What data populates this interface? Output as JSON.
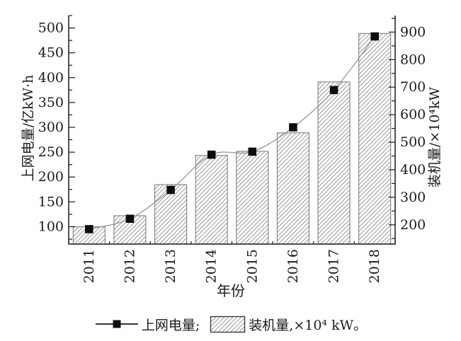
{
  "chart_data": {
    "type": "combo",
    "categories": [
      "2011",
      "2012",
      "2013",
      "2014",
      "2015",
      "2016",
      "2017",
      "2018"
    ],
    "series": [
      {
        "name": "上网电量",
        "type": "line",
        "axis": "left",
        "marker": "filled-square",
        "values": [
          95,
          116,
          174,
          245,
          251,
          300,
          375,
          483
        ]
      },
      {
        "name": "装机量",
        "type": "bar",
        "axis": "right",
        "fill": "diagonal-hatch",
        "values": [
          193,
          233,
          346,
          452,
          467,
          534,
          719,
          895
        ]
      }
    ],
    "x_axis": {
      "title": "年份",
      "tick_labels": [
        "2011",
        "2012",
        "2013",
        "2014",
        "2015",
        "2016",
        "2017",
        "2018"
      ]
    },
    "left_axis": {
      "title": "上网电量/亿kW·h",
      "min": 65,
      "max": 525,
      "major_ticks": [
        100,
        150,
        200,
        250,
        300,
        350,
        400,
        450,
        500
      ],
      "minor_step": 25
    },
    "right_axis": {
      "title": "装机量/×10⁴kW",
      "min": 130,
      "max": 960,
      "major_ticks": [
        200,
        300,
        400,
        500,
        600,
        700,
        800,
        900
      ],
      "minor_step": 50
    },
    "legend": {
      "position": "bottom-center",
      "entries": [
        {
          "swatch": "line-marker",
          "label": "上网电量;"
        },
        {
          "swatch": "hatch-box",
          "label": "装机量,×10⁴ kW。"
        }
      ]
    },
    "grid": "off",
    "colors": {
      "background": "#ffffff",
      "axis": "#1a1a1a",
      "marker": "#0d0d0d",
      "line": "#8f8f8f",
      "bar_border": "#808080",
      "hatch": "#9b9b9b",
      "legend_box_border": "#3c3c3c"
    }
  }
}
